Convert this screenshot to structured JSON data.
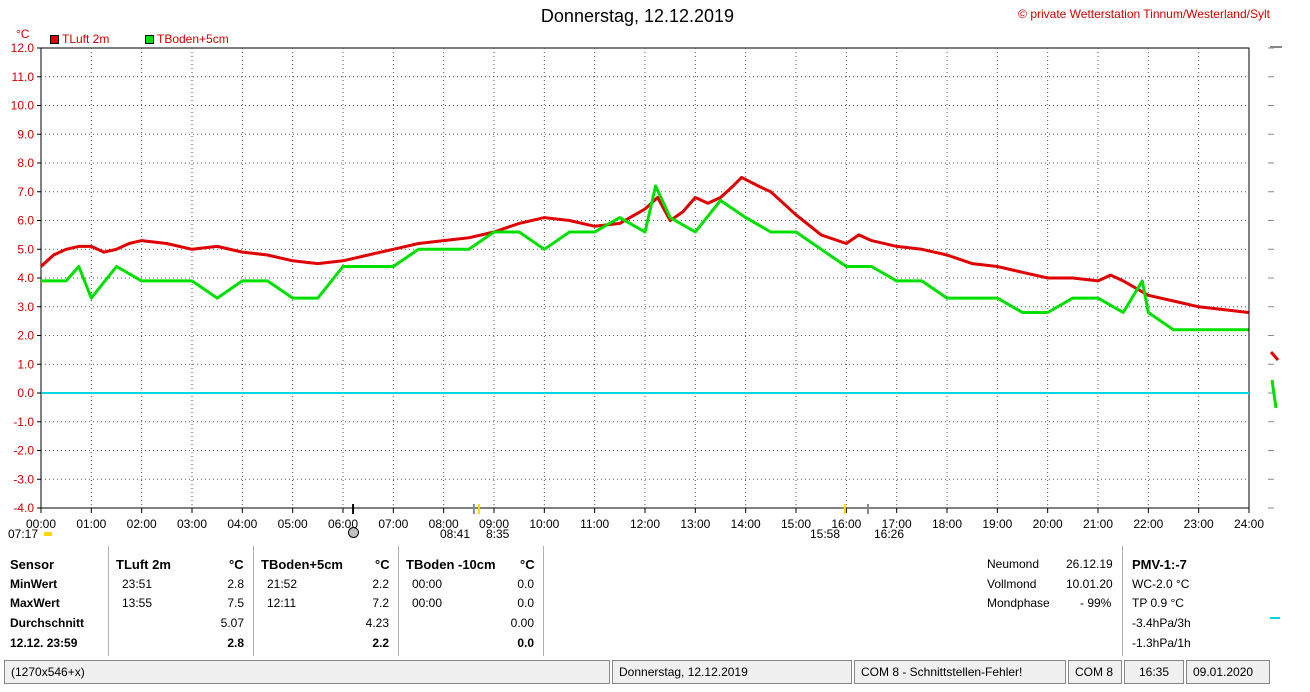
{
  "title": "Donnerstag, 12.12.2019",
  "copyright": "© private Wetterstation Tinnum/Westerland/Sylt",
  "unit": "°C",
  "legend": [
    {
      "label": "TLuft 2m",
      "color": "#e00000"
    },
    {
      "label": "TBoden+5cm",
      "color": "#00e000"
    }
  ],
  "sun_moon": {
    "sunrise": "07:17",
    "morning_a": "08:41",
    "morning_b": "8:35",
    "evening_a": "15:58",
    "evening_b": "16:26"
  },
  "chart_data": {
    "type": "line",
    "title": "Donnerstag, 12.12.2019",
    "ylabel": "°C",
    "ylim": [
      -4,
      12
    ],
    "xlim": [
      0,
      24
    ],
    "yticks": [
      "12.0",
      "11.0",
      "10.0",
      "9.0",
      "8.0",
      "7.0",
      "6.0",
      "5.0",
      "4.0",
      "3.0",
      "2.0",
      "1.0",
      "0.0",
      "-1.0",
      "-2.0",
      "-3.0",
      "-4.0"
    ],
    "xticks": [
      "00:00",
      "01:00",
      "02:00",
      "03:00",
      "04:00",
      "05:00",
      "06:00",
      "07:00",
      "08:00",
      "09:00",
      "10:00",
      "11:00",
      "12:00",
      "13:00",
      "14:00",
      "15:00",
      "16:00",
      "17:00",
      "18:00",
      "19:00",
      "20:00",
      "21:00",
      "22:00",
      "23:00",
      "24:00"
    ],
    "grid": true,
    "legend_position": "top-left",
    "zero_line": 0,
    "series": [
      {
        "name": "TLuft 2m",
        "color": "#e00000",
        "x": [
          0,
          0.25,
          0.5,
          0.75,
          1,
          1.25,
          1.5,
          1.75,
          2,
          2.5,
          3,
          3.5,
          4,
          4.5,
          5,
          5.5,
          6,
          6.5,
          7,
          7.5,
          8,
          8.5,
          9,
          9.5,
          10,
          10.5,
          11,
          11.5,
          12,
          12.25,
          12.5,
          12.75,
          13,
          13.25,
          13.5,
          13.75,
          13.92,
          14.25,
          14.5,
          14.75,
          15,
          15.5,
          16,
          16.25,
          16.5,
          17,
          17.5,
          18,
          18.5,
          19,
          19.5,
          20,
          20.5,
          21,
          21.25,
          21.5,
          22,
          22.5,
          23,
          23.5,
          23.99
        ],
        "y": [
          4.4,
          4.8,
          5.0,
          5.1,
          5.1,
          4.9,
          5.0,
          5.2,
          5.3,
          5.2,
          5.0,
          5.1,
          4.9,
          4.8,
          4.6,
          4.5,
          4.6,
          4.8,
          5.0,
          5.2,
          5.3,
          5.4,
          5.6,
          5.9,
          6.1,
          6.0,
          5.8,
          5.9,
          6.4,
          6.8,
          6.0,
          6.3,
          6.8,
          6.6,
          6.8,
          7.2,
          7.5,
          7.2,
          7.0,
          6.6,
          6.2,
          5.5,
          5.2,
          5.5,
          5.3,
          5.1,
          5.0,
          4.8,
          4.5,
          4.4,
          4.2,
          4.0,
          4.0,
          3.9,
          4.1,
          3.9,
          3.4,
          3.2,
          3.0,
          2.9,
          2.8
        ]
      },
      {
        "name": "TBoden+5cm",
        "color": "#00e000",
        "x": [
          0,
          0.5,
          0.75,
          1,
          1.5,
          2,
          2.5,
          3,
          3.5,
          4,
          4.5,
          5,
          5.5,
          6,
          6.5,
          7,
          7.5,
          8,
          8.5,
          9,
          9.5,
          10,
          10.5,
          11,
          11.5,
          12,
          12.21,
          12.5,
          13,
          13.5,
          14,
          14.5,
          15,
          15.5,
          16,
          16.5,
          17,
          17.5,
          18,
          18.5,
          19,
          19.5,
          20,
          20.5,
          21,
          21.5,
          21.88,
          22,
          22.5,
          23,
          23.5,
          23.99
        ],
        "y": [
          3.9,
          3.9,
          4.4,
          3.3,
          4.4,
          3.9,
          3.9,
          3.9,
          3.3,
          3.9,
          3.9,
          3.3,
          3.3,
          4.4,
          4.4,
          4.4,
          5.0,
          5.0,
          5.0,
          5.6,
          5.6,
          5.0,
          5.6,
          5.6,
          6.1,
          5.6,
          7.2,
          6.1,
          5.6,
          6.7,
          6.1,
          5.6,
          5.6,
          5.0,
          4.4,
          4.4,
          3.9,
          3.9,
          3.3,
          3.3,
          3.3,
          2.8,
          2.8,
          3.3,
          3.3,
          2.8,
          3.9,
          2.8,
          2.2,
          2.2,
          2.2,
          2.2
        ]
      }
    ]
  },
  "stats": {
    "headers": [
      "Sensor",
      "TLuft 2m",
      "°C",
      "TBoden+5cm",
      "°C",
      "TBoden -10cm",
      "°C"
    ],
    "rows": [
      {
        "label": "MinWert",
        "t1": "23:51",
        "v1": "2.8",
        "t2": "21:52",
        "v2": "2.2",
        "t3": "00:00",
        "v3": "0.0"
      },
      {
        "label": "MaxWert",
        "t1": "13:55",
        "v1": "7.5",
        "t2": "12:11",
        "v2": "7.2",
        "t3": "00:00",
        "v3": "0.0"
      },
      {
        "label": "Durchschnitt",
        "t1": "",
        "v1": "5.07",
        "t2": "",
        "v2": "4.23",
        "t3": "",
        "v3": "0.00"
      },
      {
        "label": "12.12. 23:59",
        "t1": "",
        "v1": "2.8",
        "t2": "",
        "v2": "2.2",
        "t3": "",
        "v3": "0.0"
      }
    ]
  },
  "moon": [
    {
      "label": "Neumond",
      "value": "26.12.19"
    },
    {
      "label": "Vollmond",
      "value": "10.01.20"
    },
    {
      "label": "Mondphase",
      "value": "- 99%"
    }
  ],
  "pmv": {
    "header": "PMV-1:-7",
    "lines": [
      "WC-2.0 °C",
      "TP 0.9 °C",
      "-3.4hPa/3h",
      "-1.3hPa/1h"
    ]
  },
  "status_bar": {
    "size": "(1270x546+x)",
    "date": "Donnerstag, 12.12.2019",
    "error": "COM 8 - Schnittstellen-Fehler!",
    "port": "COM 8",
    "time": "16:35",
    "current_date": "09.01.2020"
  }
}
